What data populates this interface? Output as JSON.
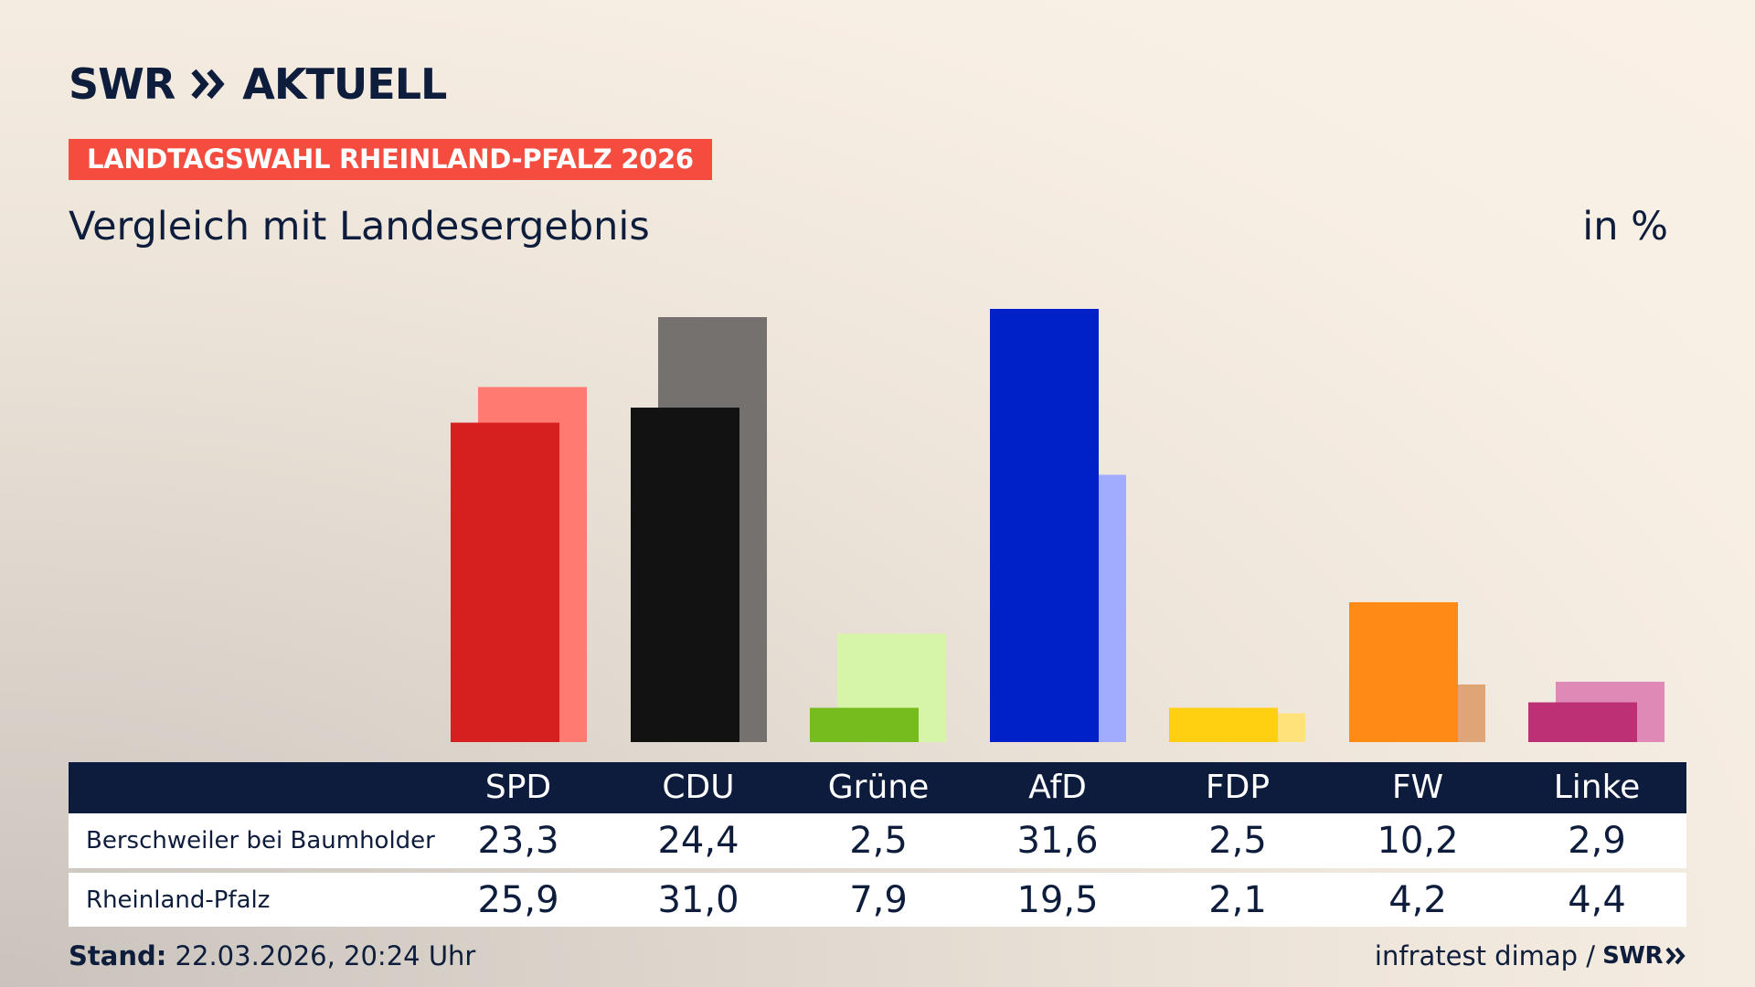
{
  "brand": {
    "logo_left": "SWR",
    "logo_right": "AKTUELL",
    "logo_icon": "double-chevron-right-icon"
  },
  "tag": "LANDTAGSWAHL RHEINLAND-PFALZ 2026",
  "subtitle": "Vergleich mit Landesergebnis",
  "unit": "in %",
  "colors": {
    "local": [
      "#d62020",
      "#121212",
      "#77bc1f",
      "#0021c8",
      "#ffcf12",
      "#ff8a16",
      "#bd3075"
    ],
    "state": [
      "#ff7a70",
      "#75716e",
      "#d7f5a9",
      "#a1acff",
      "#ffe37a",
      "#dfa576",
      "#df8ab6"
    ],
    "tag_bg": "#f44d3f",
    "table_header_bg": "#0d1c3d"
  },
  "chart_data": {
    "type": "bar",
    "categories": [
      "SPD",
      "CDU",
      "Grüne",
      "AfD",
      "FDP",
      "FW",
      "Linke"
    ],
    "series": [
      {
        "name": "Berschweiler bei Baumholder",
        "values": [
          23.3,
          24.4,
          2.5,
          31.6,
          2.5,
          10.2,
          2.9
        ]
      },
      {
        "name": "Rheinland-Pfalz",
        "values": [
          25.9,
          31.0,
          7.9,
          19.5,
          2.1,
          4.2,
          4.4
        ]
      }
    ],
    "ylim": [
      0,
      32
    ]
  },
  "table": {
    "headers": [
      "SPD",
      "CDU",
      "Grüne",
      "AfD",
      "FDP",
      "FW",
      "Linke"
    ],
    "rows": [
      {
        "label": "Berschweiler bei Baumholder",
        "values": [
          "23,3",
          "24,4",
          "2,5",
          "31,6",
          "2,5",
          "10,2",
          "2,9"
        ]
      },
      {
        "label": "Rheinland-Pfalz",
        "values": [
          "25,9",
          "31,0",
          "7,9",
          "19,5",
          "2,1",
          "4,2",
          "4,4"
        ]
      }
    ]
  },
  "footer": {
    "stand_label": "Stand:",
    "stand_value": "22.03.2026, 20:24 Uhr",
    "source": "infratest dimap /",
    "source_logo": "SWR"
  }
}
